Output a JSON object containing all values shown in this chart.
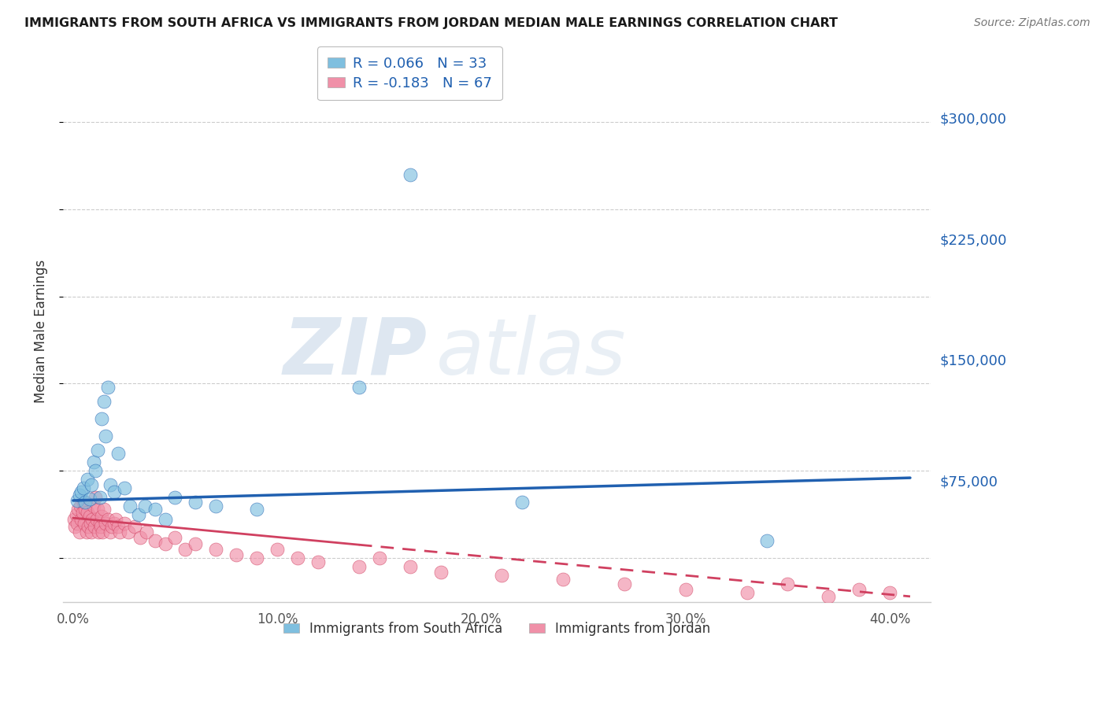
{
  "title": "IMMIGRANTS FROM SOUTH AFRICA VS IMMIGRANTS FROM JORDAN MEDIAN MALE EARNINGS CORRELATION CHART",
  "source": "Source: ZipAtlas.com",
  "ylabel": "Median Male Earnings",
  "xlabel_ticks": [
    "0.0%",
    "10.0%",
    "20.0%",
    "30.0%",
    "40.0%"
  ],
  "xlabel_vals": [
    0.0,
    10.0,
    20.0,
    30.0,
    40.0
  ],
  "ytick_vals": [
    0,
    75000,
    150000,
    225000,
    300000
  ],
  "ytick_labels": [
    "",
    "$75,000",
    "$150,000",
    "$225,000",
    "$300,000"
  ],
  "xlim": [
    -0.5,
    42.0
  ],
  "ylim": [
    25000,
    330000
  ],
  "legend_entry1": "R = 0.066   N = 33",
  "legend_entry2": "R = -0.183   N = 67",
  "legend_label1": "Immigrants from South Africa",
  "legend_label2": "Immigrants from Jordan",
  "color_blue": "#7fbfdf",
  "color_pink": "#f090a8",
  "color_blue_line": "#2060b0",
  "color_pink_line": "#d04060",
  "watermark_zip": "ZIP",
  "watermark_atlas": "atlas",
  "sa_x": [
    0.2,
    0.3,
    0.4,
    0.5,
    0.6,
    0.7,
    0.8,
    0.9,
    1.0,
    1.1,
    1.2,
    1.3,
    1.4,
    1.5,
    1.6,
    1.7,
    1.8,
    2.0,
    2.2,
    2.5,
    2.8,
    3.2,
    3.5,
    4.0,
    4.5,
    5.0,
    6.0,
    7.0,
    9.0,
    14.0,
    16.5,
    22.0,
    34.0
  ],
  "sa_y": [
    83000,
    86000,
    88000,
    90000,
    82000,
    95000,
    84000,
    92000,
    105000,
    100000,
    112000,
    85000,
    130000,
    140000,
    120000,
    148000,
    92000,
    88000,
    110000,
    90000,
    80000,
    75000,
    80000,
    78000,
    72000,
    85000,
    82000,
    80000,
    78000,
    148000,
    270000,
    82000,
    60000
  ],
  "jo_x": [
    0.05,
    0.1,
    0.15,
    0.2,
    0.25,
    0.3,
    0.35,
    0.4,
    0.45,
    0.5,
    0.55,
    0.6,
    0.65,
    0.7,
    0.75,
    0.8,
    0.85,
    0.9,
    0.95,
    1.0,
    1.05,
    1.1,
    1.15,
    1.2,
    1.25,
    1.3,
    1.35,
    1.4,
    1.45,
    1.5,
    1.6,
    1.7,
    1.8,
    1.9,
    2.0,
    2.1,
    2.2,
    2.3,
    2.5,
    2.7,
    3.0,
    3.3,
    3.6,
    4.0,
    4.5,
    5.0,
    5.5,
    6.0,
    7.0,
    8.0,
    9.0,
    10.0,
    11.0,
    12.0,
    14.0,
    15.0,
    16.5,
    18.0,
    21.0,
    24.0,
    27.0,
    30.0,
    33.0,
    35.0,
    37.0,
    38.5,
    40.0
  ],
  "jo_y": [
    72000,
    68000,
    75000,
    70000,
    78000,
    65000,
    80000,
    72000,
    76000,
    82000,
    70000,
    78000,
    65000,
    76000,
    68000,
    74000,
    70000,
    65000,
    72000,
    80000,
    68000,
    85000,
    72000,
    78000,
    65000,
    70000,
    68000,
    74000,
    65000,
    78000,
    70000,
    72000,
    65000,
    68000,
    70000,
    72000,
    68000,
    65000,
    70000,
    65000,
    68000,
    62000,
    65000,
    60000,
    58000,
    62000,
    55000,
    58000,
    55000,
    52000,
    50000,
    55000,
    50000,
    48000,
    45000,
    50000,
    45000,
    42000,
    40000,
    38000,
    35000,
    32000,
    30000,
    35000,
    28000,
    32000,
    30000
  ],
  "sa_line_x0": 0.0,
  "sa_line_x1": 41.0,
  "sa_line_y0": 83000,
  "sa_line_y1": 96000,
  "jo_line_solid_x0": 0.0,
  "jo_line_solid_x1": 14.0,
  "jo_line_dashed_x0": 14.0,
  "jo_line_dashed_x1": 41.0,
  "jo_line_y0": 73000,
  "jo_line_y1": 28000
}
